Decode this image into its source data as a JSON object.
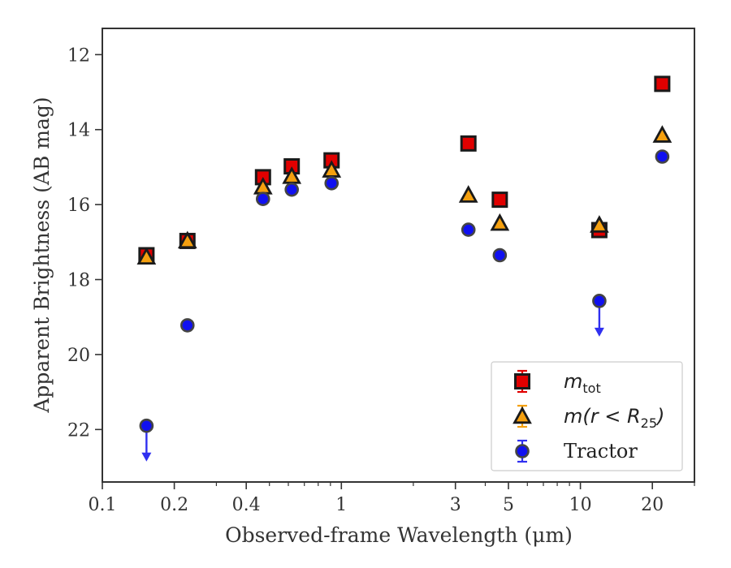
{
  "chart_data": {
    "type": "scatter",
    "xlabel": "Observed-frame Wavelength (μm)",
    "ylabel": "Apparent Brightness (AB mag)",
    "x_scale": "log",
    "xlim": [
      0.1,
      30
    ],
    "ylim": [
      23.4,
      11.3
    ],
    "y_inverted": true,
    "grid": false,
    "legend_position": "bottom-right",
    "x_ticks": [
      {
        "value": 0.1,
        "label": "0.1"
      },
      {
        "value": 0.2,
        "label": "0.2"
      },
      {
        "value": 0.4,
        "label": "0.4"
      },
      {
        "value": 1,
        "label": "1"
      },
      {
        "value": 3,
        "label": "3"
      },
      {
        "value": 5,
        "label": "5"
      },
      {
        "value": 10,
        "label": "10"
      },
      {
        "value": 20,
        "label": "20"
      }
    ],
    "y_ticks": [
      {
        "value": 12,
        "label": "12"
      },
      {
        "value": 14,
        "label": "14"
      },
      {
        "value": 16,
        "label": "16"
      },
      {
        "value": 18,
        "label": "18"
      },
      {
        "value": 20,
        "label": "20"
      },
      {
        "value": 22,
        "label": "22"
      }
    ],
    "series": [
      {
        "key": "mtot",
        "legend_base": "m",
        "legend_sub": "tot",
        "marker": "square",
        "color": "#e00000",
        "points": [
          {
            "x": 0.153,
            "y": 17.35
          },
          {
            "x": 0.227,
            "y": 16.97
          },
          {
            "x": 0.47,
            "y": 15.27
          },
          {
            "x": 0.62,
            "y": 14.98
          },
          {
            "x": 0.91,
            "y": 14.82
          },
          {
            "x": 3.4,
            "y": 14.37
          },
          {
            "x": 4.6,
            "y": 15.87
          },
          {
            "x": 12.0,
            "y": 16.68
          },
          {
            "x": 22.0,
            "y": 12.78
          }
        ]
      },
      {
        "key": "mr25",
        "legend_text": "m(r < R",
        "legend_sub": "25",
        "legend_close": ")",
        "marker": "triangle",
        "color": "#f5a00f",
        "points": [
          {
            "x": 0.153,
            "y": 17.4
          },
          {
            "x": 0.227,
            "y": 16.97
          },
          {
            "x": 0.47,
            "y": 15.53
          },
          {
            "x": 0.62,
            "y": 15.25
          },
          {
            "x": 0.91,
            "y": 15.08
          },
          {
            "x": 3.4,
            "y": 15.75
          },
          {
            "x": 4.6,
            "y": 16.5
          },
          {
            "x": 12.0,
            "y": 16.55
          },
          {
            "x": 22.0,
            "y": 14.15
          }
        ]
      },
      {
        "key": "tractor",
        "legend_text": "Tractor",
        "marker": "circle",
        "color": "#1010f0",
        "points": [
          {
            "x": 0.153,
            "y": 21.9,
            "upper_limit": true
          },
          {
            "x": 0.227,
            "y": 19.22
          },
          {
            "x": 0.47,
            "y": 15.85
          },
          {
            "x": 0.62,
            "y": 15.6
          },
          {
            "x": 0.91,
            "y": 15.43
          },
          {
            "x": 3.4,
            "y": 16.67
          },
          {
            "x": 4.6,
            "y": 17.35
          },
          {
            "x": 12.0,
            "y": 18.57,
            "upper_limit": true
          },
          {
            "x": 22.0,
            "y": 14.72
          }
        ]
      }
    ]
  }
}
